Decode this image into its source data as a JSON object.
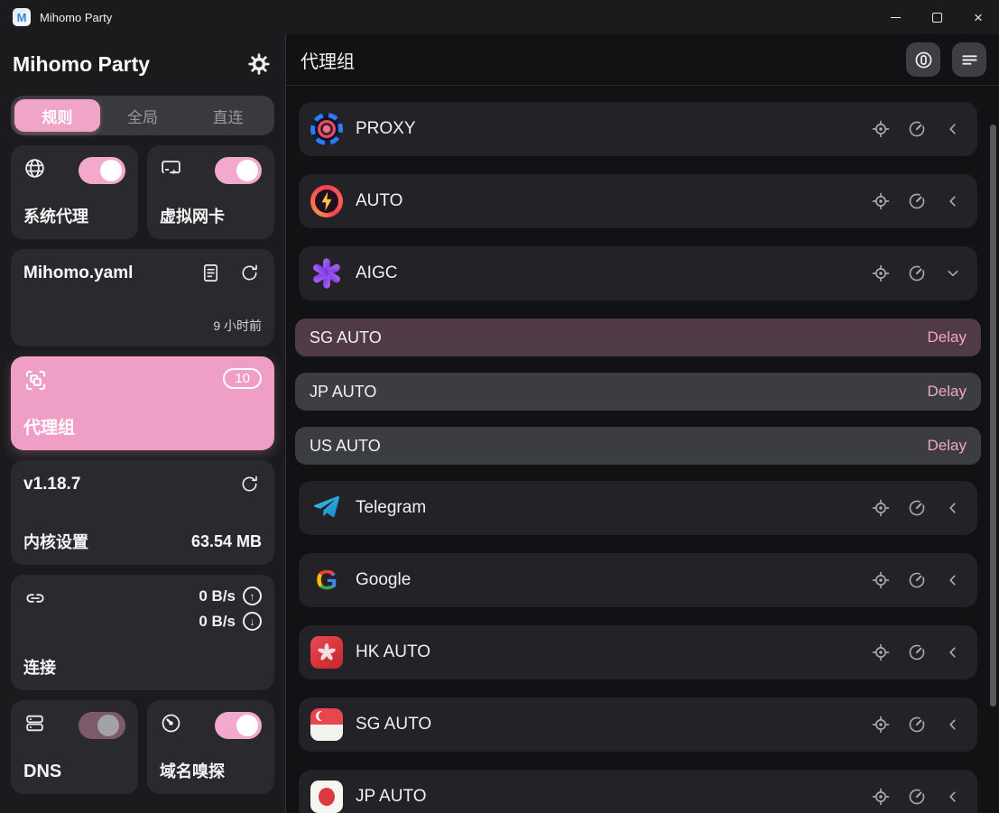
{
  "titlebar": {
    "app_title": "Mihomo Party"
  },
  "sidebar": {
    "title": "Mihomo Party",
    "tabs": [
      {
        "label": "规则",
        "active": true
      },
      {
        "label": "全局",
        "active": false
      },
      {
        "label": "直连",
        "active": false
      }
    ],
    "system_proxy": {
      "label": "系统代理",
      "enabled": true
    },
    "tun": {
      "label": "虚拟网卡",
      "enabled": true
    },
    "profile": {
      "name": "Mihomo.yaml",
      "updated": "9 小时前"
    },
    "proxy_groups_nav": {
      "label": "代理组",
      "badge": "10"
    },
    "core": {
      "version": "v1.18.7",
      "label": "内核设置",
      "memory": "63.54 MB"
    },
    "connections": {
      "label": "连接",
      "upload": "0 B/s",
      "download": "0 B/s",
      "up_arrow": "↑",
      "down_arrow": "↓"
    },
    "dns": {
      "label": "DNS",
      "enabled": false
    },
    "sniffer": {
      "label": "域名嗅探",
      "enabled": true
    }
  },
  "main": {
    "title": "代理组",
    "groups": [
      {
        "name": "PROXY",
        "icon": "proxy",
        "chevron": "left"
      },
      {
        "name": "AUTO",
        "icon": "bolt",
        "chevron": "left"
      },
      {
        "name": "AIGC",
        "icon": "openai",
        "chevron": "down",
        "items": [
          {
            "name": "SG AUTO",
            "delay": "Delay",
            "selected": true
          },
          {
            "name": "JP AUTO",
            "delay": "Delay",
            "selected": false
          },
          {
            "name": "US AUTO",
            "delay": "Delay",
            "selected": false
          }
        ]
      },
      {
        "name": "Telegram",
        "icon": "telegram",
        "chevron": "left"
      },
      {
        "name": "Google",
        "icon": "google",
        "chevron": "left"
      },
      {
        "name": "HK AUTO",
        "icon": "hk",
        "chevron": "left"
      },
      {
        "name": "SG AUTO",
        "icon": "sg",
        "chevron": "left"
      },
      {
        "name": "JP AUTO",
        "icon": "jp",
        "chevron": "left"
      }
    ]
  },
  "colors": {
    "accent_pink": "#f0a5c8",
    "selected_item_bg": "#503a46",
    "delay_text": "#f3a6c4",
    "card_bg": "#2a2a2e",
    "row_bg": "#232327"
  },
  "window_controls": {
    "minimize": "",
    "maximize": "",
    "close": "×"
  }
}
